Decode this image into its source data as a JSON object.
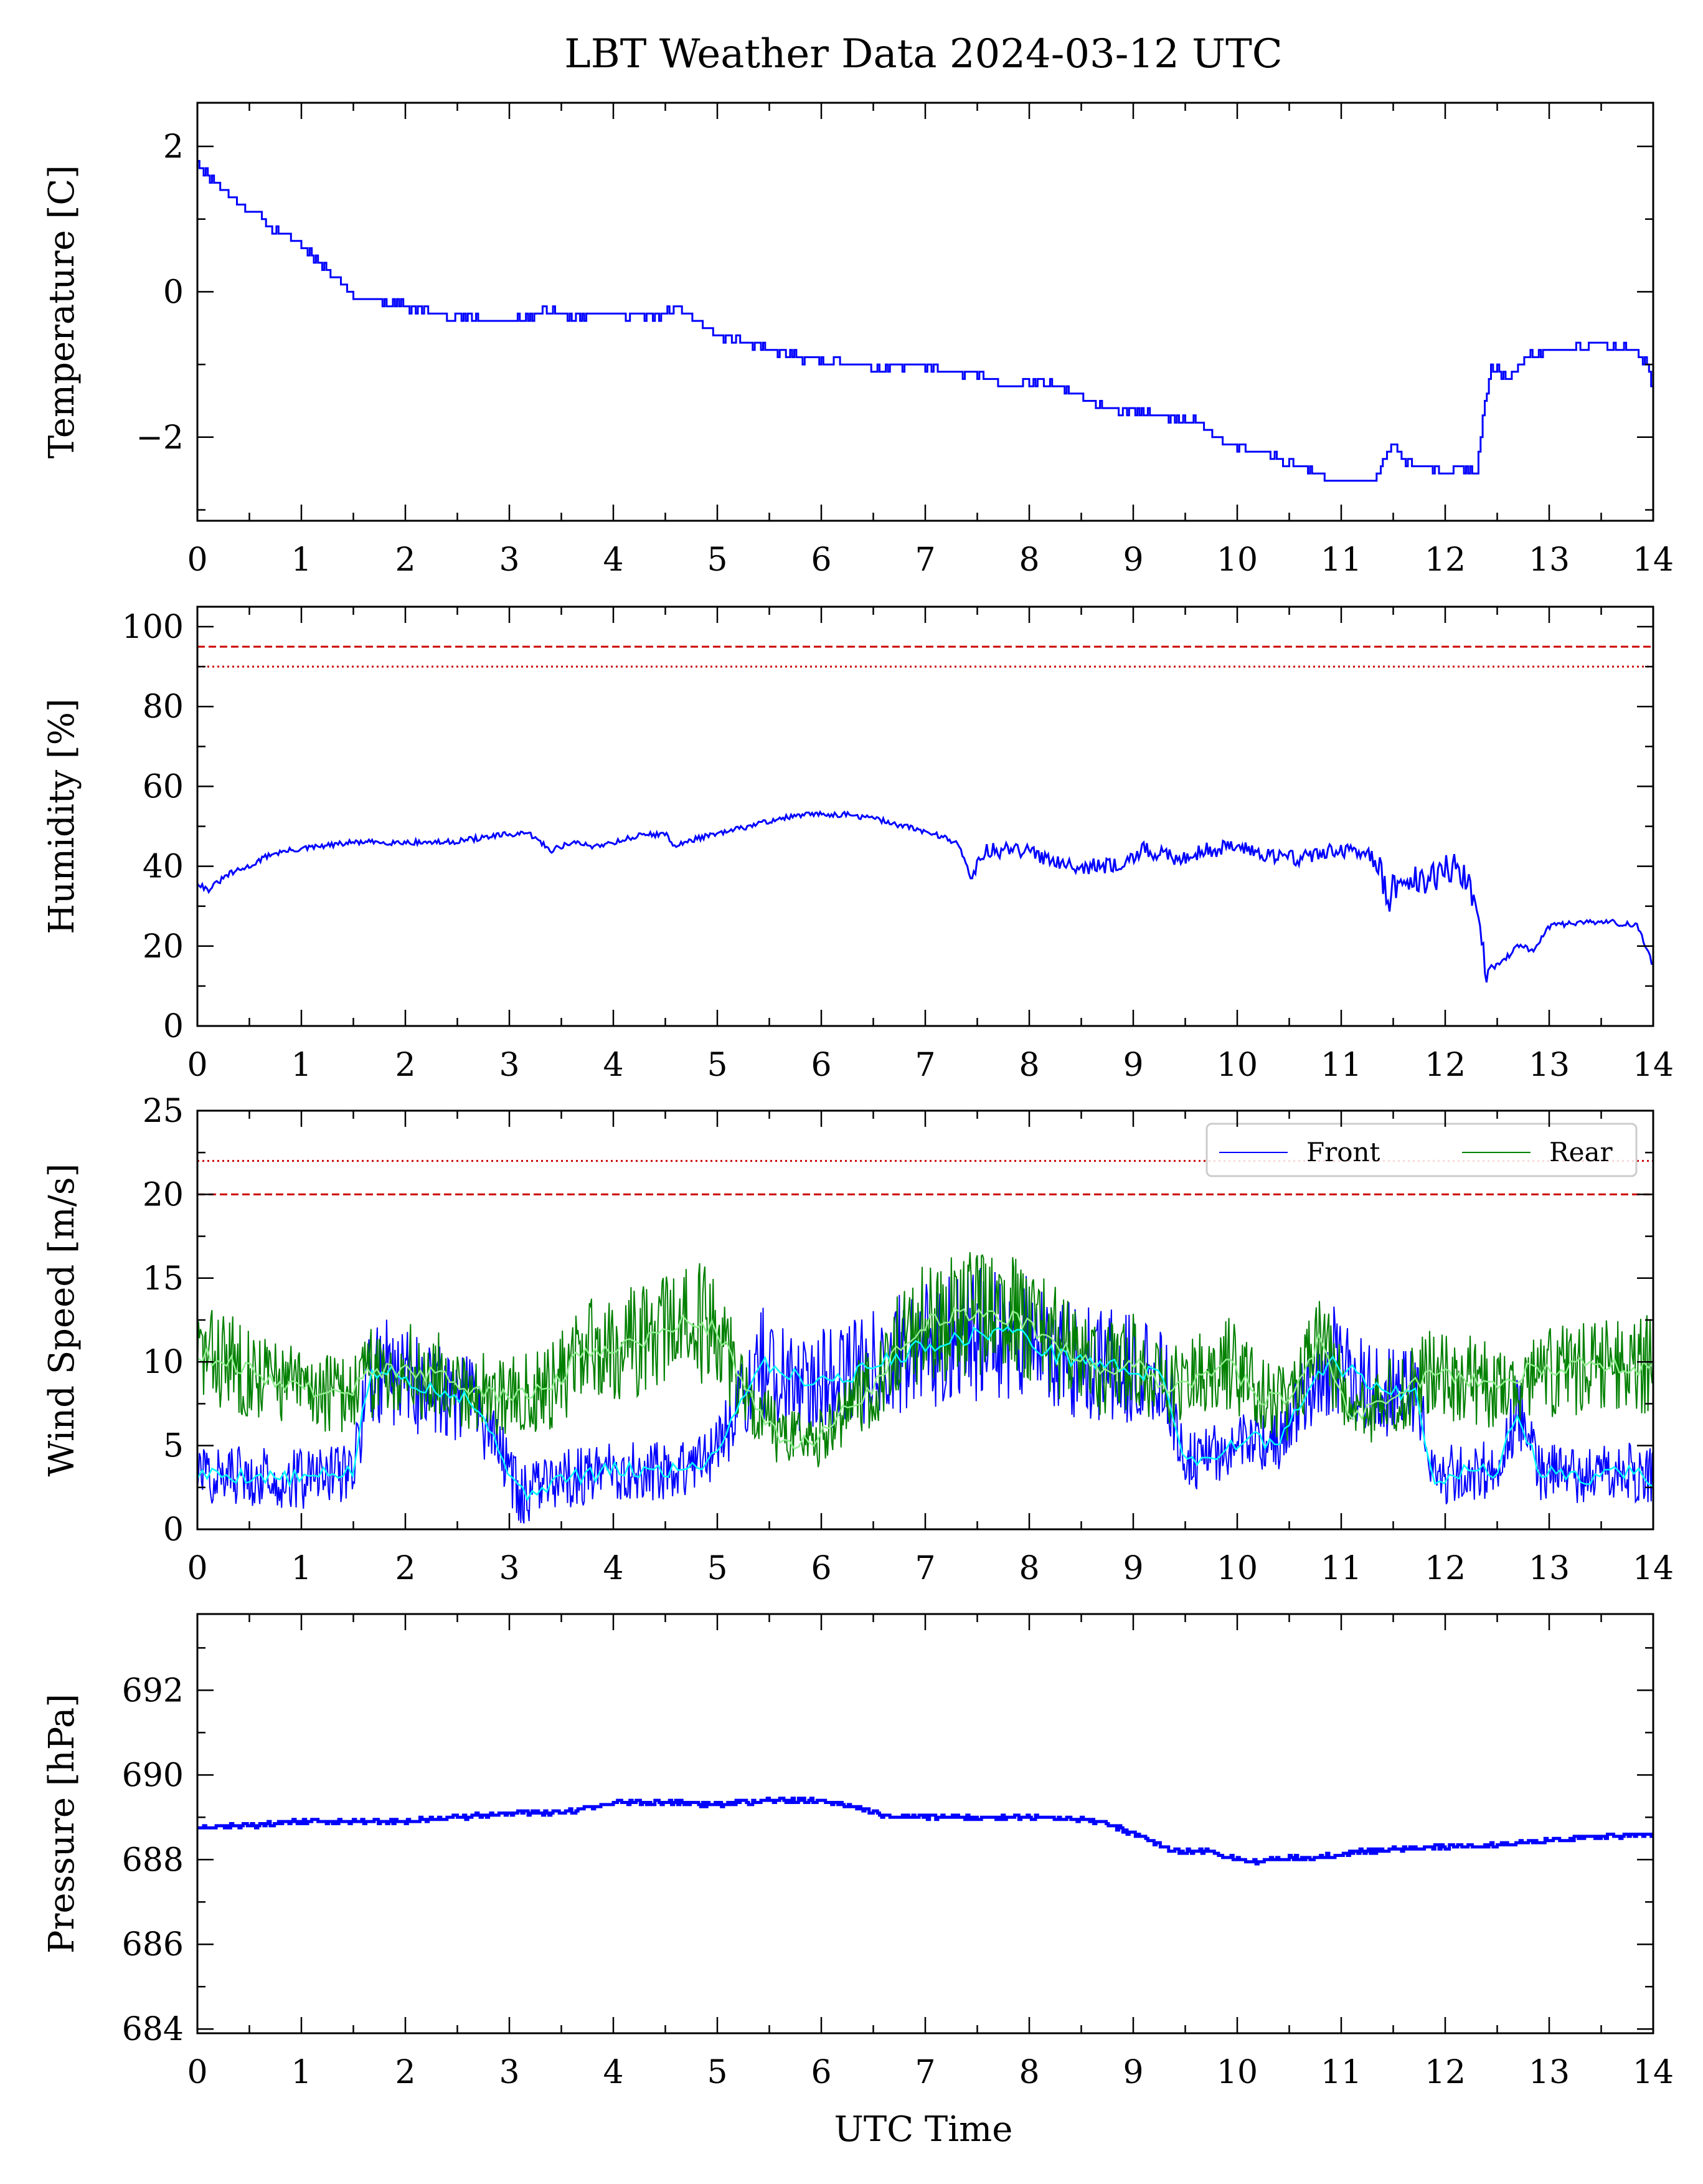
{
  "figure_title": "LBT Weather Data 2024-03-12 UTC",
  "xlabel": "UTC Time",
  "colors": {
    "temperature": "#0000ff",
    "humidity": "#0000ff",
    "wind_front": "#0000ff",
    "wind_rear": "#008000",
    "wind_front_avg": "#00ffff",
    "wind_rear_avg": "#90ee90",
    "pressure": "#0000ff",
    "limit": "#cc0000"
  },
  "chart_data": [
    {
      "type": "line",
      "title": "",
      "xlabel": "",
      "ylabel": "Temperature [C]",
      "xlim": [
        0,
        14
      ],
      "ylim": [
        -3.15,
        2.6
      ],
      "x_ticks": [
        0,
        1,
        2,
        3,
        4,
        5,
        6,
        7,
        8,
        9,
        10,
        11,
        12,
        13,
        14
      ],
      "y_ticks": [
        -2,
        0,
        2
      ],
      "y_tick_labels": [
        "−2",
        "0",
        "2"
      ],
      "series": [
        {
          "x": [
            0,
            0.1,
            0.25,
            0.4,
            0.55,
            0.7,
            0.8,
            0.95,
            1.1,
            1.25,
            1.4,
            1.55,
            1.7,
            1.85,
            2.0,
            2.3,
            2.6,
            2.9,
            3.2,
            3.4,
            3.6,
            3.8,
            4.0,
            4.3,
            4.5,
            4.6,
            4.8,
            5.0,
            5.2,
            5.4,
            5.6,
            5.8,
            6.0,
            6.3,
            6.6,
            6.9,
            7.2,
            7.5,
            7.8,
            8.0,
            8.3,
            8.6,
            8.9,
            9.2,
            9.4,
            9.6,
            9.8,
            10.0,
            10.3,
            10.6,
            10.9,
            11.1,
            11.3,
            11.5,
            11.6,
            11.7,
            11.85,
            12.0,
            12.15,
            12.3,
            12.35,
            12.45,
            12.6,
            12.8,
            13.0,
            13.2,
            13.4,
            13.6,
            13.8,
            13.95,
            14.0
          ],
          "y": [
            1.8,
            1.6,
            1.4,
            1.2,
            1.1,
            0.9,
            0.8,
            0.7,
            0.5,
            0.3,
            0.1,
            -0.1,
            -0.1,
            -0.15,
            -0.2,
            -0.3,
            -0.35,
            -0.4,
            -0.35,
            -0.25,
            -0.35,
            -0.3,
            -0.3,
            -0.35,
            -0.3,
            -0.2,
            -0.4,
            -0.6,
            -0.65,
            -0.75,
            -0.85,
            -0.9,
            -0.95,
            -1.0,
            -1.05,
            -1.0,
            -1.1,
            -1.15,
            -1.3,
            -1.25,
            -1.3,
            -1.5,
            -1.65,
            -1.7,
            -1.75,
            -1.8,
            -2.0,
            -2.15,
            -2.25,
            -2.4,
            -2.6,
            -2.6,
            -2.6,
            -2.1,
            -2.35,
            -2.4,
            -2.4,
            -2.5,
            -2.4,
            -2.5,
            -1.8,
            -1.0,
            -1.2,
            -0.9,
            -0.8,
            -0.8,
            -0.7,
            -0.75,
            -0.8,
            -1.0,
            -1.5
          ]
        }
      ]
    },
    {
      "type": "line",
      "title": "",
      "xlabel": "",
      "ylabel": "Humidity [%]",
      "xlim": [
        0,
        14
      ],
      "ylim": [
        0,
        105
      ],
      "x_ticks": [
        0,
        1,
        2,
        3,
        4,
        5,
        6,
        7,
        8,
        9,
        10,
        11,
        12,
        13,
        14
      ],
      "y_ticks": [
        0,
        20,
        40,
        60,
        80,
        100
      ],
      "y_tick_labels": [
        "0",
        "20",
        "40",
        "60",
        "80",
        "100"
      ],
      "reference_lines": [
        {
          "y": 95,
          "style": "dashed"
        },
        {
          "y": 90,
          "style": "dotted"
        }
      ],
      "series": [
        {
          "x": [
            0,
            0.1,
            0.3,
            0.5,
            0.7,
            0.9,
            1.2,
            1.5,
            1.8,
            2.1,
            2.4,
            2.7,
            3.0,
            3.2,
            3.4,
            3.6,
            3.8,
            4.0,
            4.3,
            4.5,
            4.6,
            4.8,
            5.0,
            5.3,
            5.6,
            5.9,
            6.2,
            6.5,
            6.8,
            7.1,
            7.3,
            7.45,
            7.6,
            7.9,
            8.2,
            8.5,
            8.8,
            9.1,
            9.4,
            9.7,
            10.0,
            10.3,
            10.6,
            10.9,
            11.2,
            11.35,
            11.45,
            11.6,
            11.8,
            12.0,
            12.2,
            12.3,
            12.4,
            12.55,
            12.7,
            12.85,
            13.0,
            13.3,
            13.6,
            13.85,
            14.0
          ],
          "y": [
            36,
            34,
            38,
            40,
            43,
            44,
            45,
            46,
            46,
            46,
            46,
            47,
            48,
            48,
            44,
            46,
            45,
            46,
            48,
            48,
            45,
            47,
            48,
            50,
            52,
            53,
            53,
            52,
            50,
            48,
            46,
            38,
            44,
            44,
            42,
            40,
            40,
            44,
            42,
            44,
            45,
            43,
            42,
            44,
            43,
            42,
            32,
            38,
            35,
            40,
            38,
            30,
            14,
            16,
            20,
            19,
            25,
            26,
            26,
            25,
            15
          ]
        }
      ]
    },
    {
      "type": "line",
      "title": "",
      "xlabel": "",
      "ylabel": "Wind Speed [m/s]",
      "xlim": [
        0,
        14
      ],
      "ylim": [
        0,
        25
      ],
      "x_ticks": [
        0,
        1,
        2,
        3,
        4,
        5,
        6,
        7,
        8,
        9,
        10,
        11,
        12,
        13,
        14
      ],
      "y_ticks": [
        0,
        5,
        10,
        15,
        20,
        25
      ],
      "y_tick_labels": [
        "0",
        "5",
        "10",
        "15",
        "20",
        "25"
      ],
      "reference_lines": [
        {
          "y": 20,
          "style": "dashed"
        },
        {
          "y": 22,
          "style": "dotted"
        }
      ],
      "legend": {
        "position": "top-right",
        "entries": [
          "Front",
          "Rear"
        ]
      },
      "series": [
        {
          "name": "Front",
          "x": [
            0,
            0.5,
            1.0,
            1.5,
            1.65,
            1.8,
            2.2,
            2.6,
            2.9,
            3.1,
            3.5,
            4.0,
            4.5,
            4.9,
            5.1,
            5.4,
            5.8,
            6.2,
            6.6,
            7.0,
            7.4,
            7.8,
            8.2,
            8.6,
            9.0,
            9.3,
            9.5,
            9.8,
            10.1,
            10.4,
            10.7,
            10.9,
            11.2,
            11.5,
            11.7,
            11.9,
            12.2,
            12.5,
            12.7,
            12.9,
            13.3,
            13.7,
            14.0
          ],
          "y": [
            3.3,
            3.2,
            3.0,
            3.5,
            9.0,
            9.5,
            8.5,
            8.0,
            5.0,
            2.0,
            3.0,
            3.5,
            3.5,
            4.0,
            6.0,
            10.0,
            9.0,
            9.0,
            10.0,
            11.0,
            11.5,
            12.0,
            10.5,
            10.0,
            9.5,
            9.0,
            4.0,
            4.5,
            5.5,
            5.0,
            8.5,
            10.0,
            9.0,
            8.0,
            8.5,
            3.0,
            3.5,
            3.5,
            7.0,
            3.5,
            3.0,
            3.5,
            3.0
          ]
        },
        {
          "name": "Rear",
          "x": [
            0,
            0.3,
            0.7,
            1.0,
            1.4,
            1.7,
            2.0,
            2.4,
            2.8,
            3.1,
            3.4,
            3.7,
            4.0,
            4.4,
            4.7,
            5.0,
            5.3,
            5.6,
            5.9,
            6.2,
            6.5,
            6.8,
            7.1,
            7.5,
            7.9,
            8.3,
            8.7,
            9.0,
            9.3,
            9.6,
            9.9,
            10.2,
            10.5,
            10.8,
            11.1,
            11.5,
            11.9,
            12.2,
            12.5,
            12.8,
            13.1,
            13.5,
            13.8,
            14.0
          ],
          "y": [
            10.5,
            10.0,
            9.0,
            8.5,
            8.0,
            9.5,
            9.5,
            9.0,
            8.0,
            8.0,
            8.5,
            10.5,
            11.0,
            11.5,
            12.5,
            12.0,
            8.0,
            5.5,
            5.0,
            7.0,
            8.5,
            11.5,
            12.5,
            13.0,
            12.5,
            11.0,
            9.5,
            10.0,
            8.5,
            9.0,
            10.0,
            8.0,
            7.5,
            11.5,
            6.5,
            8.0,
            9.5,
            9.0,
            8.5,
            9.5,
            9.5,
            10.0,
            9.5,
            10.0
          ]
        }
      ]
    },
    {
      "type": "line",
      "title": "",
      "xlabel": "UTC Time",
      "ylabel": "Pressure [hPa]",
      "xlim": [
        0,
        14
      ],
      "ylim": [
        683.9,
        693.8
      ],
      "x_ticks": [
        0,
        1,
        2,
        3,
        4,
        5,
        6,
        7,
        8,
        9,
        10,
        11,
        12,
        13,
        14
      ],
      "y_ticks": [
        684,
        686,
        688,
        690,
        692
      ],
      "y_tick_labels": [
        "684",
        "686",
        "688",
        "690",
        "692"
      ],
      "series": [
        {
          "x": [
            0,
            0.5,
            1.0,
            1.5,
            2.0,
            2.5,
            3.0,
            3.5,
            4.0,
            4.5,
            5.0,
            5.5,
            6.0,
            6.3,
            6.6,
            7.0,
            7.5,
            8.0,
            8.5,
            8.8,
            9.1,
            9.4,
            9.7,
            10.0,
            10.2,
            10.5,
            10.8,
            11.0,
            11.5,
            12.0,
            12.5,
            13.0,
            13.5,
            14.0
          ],
          "y": [
            688.75,
            688.8,
            688.9,
            688.9,
            688.9,
            689.0,
            689.1,
            689.1,
            689.35,
            689.35,
            689.3,
            689.4,
            689.4,
            689.25,
            689.05,
            689.0,
            689.0,
            689.0,
            688.95,
            688.8,
            688.5,
            688.2,
            688.2,
            688.0,
            687.95,
            688.05,
            688.05,
            688.15,
            688.25,
            688.3,
            688.35,
            688.45,
            688.55,
            688.6
          ]
        }
      ]
    }
  ]
}
